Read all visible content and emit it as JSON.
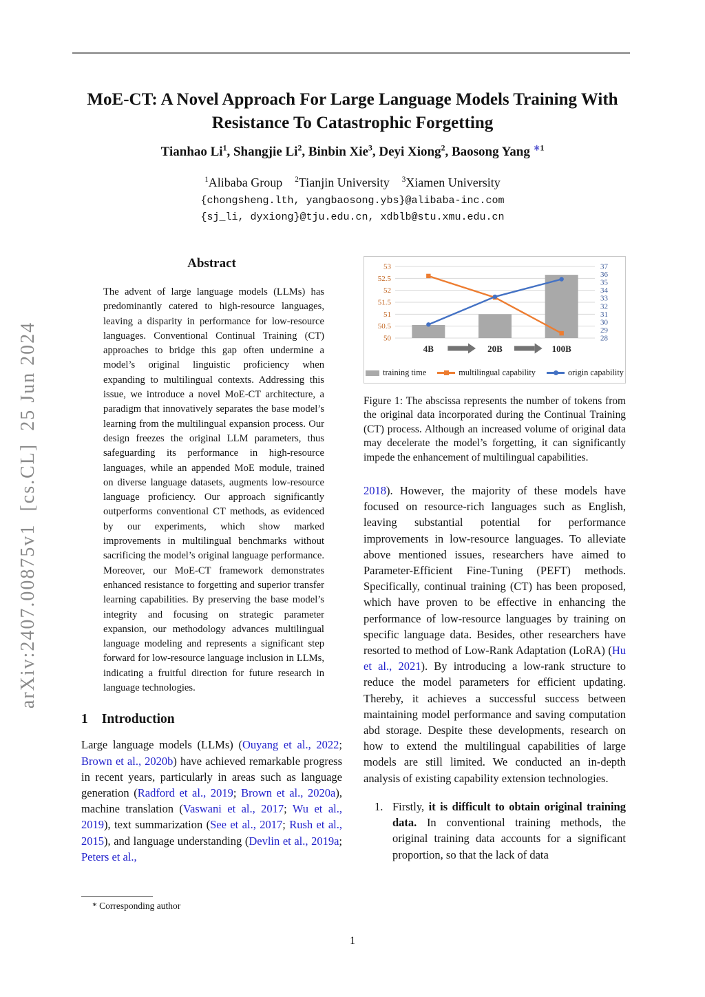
{
  "watermark": "arXiv:2407.00875v1  [cs.CL]  25 Jun 2024",
  "header": {
    "title_line1": "MoE-CT: A Novel Approach For Large Language Models Training With",
    "title_line2": "Resistance To Catastrophic Forgetting",
    "authors_rich": [
      {
        "b": "Tianhao Li"
      },
      {
        "s": "1"
      },
      {
        "b": ", Shangjie Li"
      },
      {
        "s": "2"
      },
      {
        "b": ", Binbin Xie"
      },
      {
        "s": "3"
      },
      {
        "b": ", Deyi Xiong"
      },
      {
        "s": "2"
      },
      {
        "b": ", Baosong Yang"
      },
      {
        "t": " "
      },
      {
        "cs": "∗"
      },
      {
        "s": "1"
      }
    ],
    "affiliations_rich": [
      {
        "s": "1"
      },
      {
        "t": "Alibaba Group  "
      },
      {
        "s": "2"
      },
      {
        "t": "Tianjin University  "
      },
      {
        "s": "3"
      },
      {
        "t": "Xiamen University"
      }
    ],
    "email_line1": "{chongsheng.lth, yangbaosong.ybs}@alibaba-inc.com",
    "email_line2": "{sj_li, dyxiong}@tju.edu.cn, xdblb@stu.xmu.edu.cn"
  },
  "abstract": {
    "heading": "Abstract",
    "text": "The advent of large language models (LLMs) has predominantly catered to high-resource languages, leaving a disparity in performance for low-resource languages. Conventional Continual Training (CT) approaches to bridge this gap often undermine a model’s original linguistic proficiency when expanding to multilingual contexts. Addressing this issue, we introduce a novel MoE-CT architecture, a paradigm that innovatively separates the base model’s learning from the multilingual expansion process. Our design freezes the original LLM parameters, thus safeguarding its performance in high-resource languages, while an appended MoE module, trained on diverse language datasets, augments low-resource language proficiency. Our approach significantly outperforms conventional CT methods, as evidenced by our experiments, which show marked improvements in multilingual benchmarks without sacrificing the model’s original language performance. Moreover, our MoE-CT framework demonstrates enhanced resistance to forgetting and superior transfer learning capabilities. By preserving the base model’s integrity and focusing on strategic parameter expansion, our methodology advances multilingual language modeling and represents a significant step forward for low-resource language inclusion in LLMs, indicating a fruitful direction for future research in language technologies."
  },
  "introduction": {
    "number": "1",
    "heading": "Introduction",
    "paragraph_rich": [
      {
        "t": "Large language models (LLMs) ("
      },
      {
        "c": "Ouyang et al., 2022"
      },
      {
        "t": "; "
      },
      {
        "c": "Brown et al., 2020b"
      },
      {
        "t": ") have achieved remarkable progress in recent years, particularly in areas such as language generation ("
      },
      {
        "c": "Radford et al., 2019"
      },
      {
        "t": "; "
      },
      {
        "c": "Brown et al., 2020a"
      },
      {
        "t": "), machine translation ("
      },
      {
        "c": "Vaswani et al., 2017"
      },
      {
        "t": "; "
      },
      {
        "c": "Wu et al., 2019"
      },
      {
        "t": "), text summarization ("
      },
      {
        "c": "See et al., 2017"
      },
      {
        "t": "; "
      },
      {
        "c": "Rush et al., 2015"
      },
      {
        "t": "), and language understanding ("
      },
      {
        "c": "Devlin et al., 2019a"
      },
      {
        "t": "; "
      },
      {
        "c": "Peters et al.,"
      }
    ]
  },
  "figure1": {
    "caption": "Figure 1: The abscissa represents the number of tokens from the original data incorporated during the Continual Training (CT) process. Although an increased volume of original data may decelerate the model’s forgetting, it can significantly impede the enhancement of multilingual capabilities."
  },
  "chart_data": {
    "type": "bar",
    "subtype": "combo bar+line, dual y-axes",
    "categories": [
      "4B",
      "20B",
      "100B"
    ],
    "series": [
      {
        "name": "training time",
        "type": "bar",
        "axis": "left",
        "marker": "rect",
        "color": "#A9A9A9",
        "values": [
          50.55,
          51.0,
          52.65
        ]
      },
      {
        "name": "multilingual capability",
        "type": "line",
        "axis": "left",
        "marker": "square",
        "color": "#ED7D31",
        "values": [
          52.6,
          51.7,
          50.2
        ]
      },
      {
        "name": "origin capability",
        "type": "line",
        "axis": "right",
        "marker": "circle",
        "color": "#4472C4",
        "values": [
          29.7,
          33.2,
          35.4
        ]
      }
    ],
    "left_axis": {
      "min": 50,
      "max": 53,
      "step": 0.5,
      "color": "#C1641F"
    },
    "right_axis": {
      "min": 28,
      "max": 37,
      "step": 1,
      "color": "#3F5D9B"
    },
    "grid_color": "#D9D9D9",
    "arrow_color": "#737373",
    "x_label_color": "#262626",
    "legend_position": "bottom",
    "title": "",
    "xlabel": "",
    "ylabel": ""
  },
  "right_column": {
    "paragraph_rich": [
      {
        "c": "2018"
      },
      {
        "t": "). However, the majority of these models have focused on resource-rich languages such as English, leaving substantial potential for performance improvements in low-resource languages. To alleviate above mentioned issues, researchers have aimed to Parameter-Efficient Fine-Tuning (PEFT) methods. Specifically, continual training (CT) has been proposed, which have proven to be effective in enhancing the performance of low-resource languages by training on specific language data. Besides, other researchers have resorted to method of Low-Rank Adaptation (LoRA) ("
      },
      {
        "c": "Hu et al., 2021"
      },
      {
        "t": "). By introducing a low-rank structure to reduce the model parameters for efficient updating. Thereby, it achieves a successful success between maintaining model performance and saving computation abd storage. Despite these developments, research on how to extend the multilingual capabilities of large models are still limited. We conducted an in-depth analysis of existing capability extension technologies."
      }
    ],
    "list_item1": {
      "number": "1.",
      "rich": [
        {
          "t": "Firstly, "
        },
        {
          "b": "it is difficult to obtain original training data."
        },
        {
          "t": " In conventional training methods, the original training data accounts for a significant proportion, so that the lack of data"
        }
      ]
    }
  },
  "footnote": {
    "text": "* Corresponding author"
  },
  "footer": {
    "page_number": "1"
  }
}
